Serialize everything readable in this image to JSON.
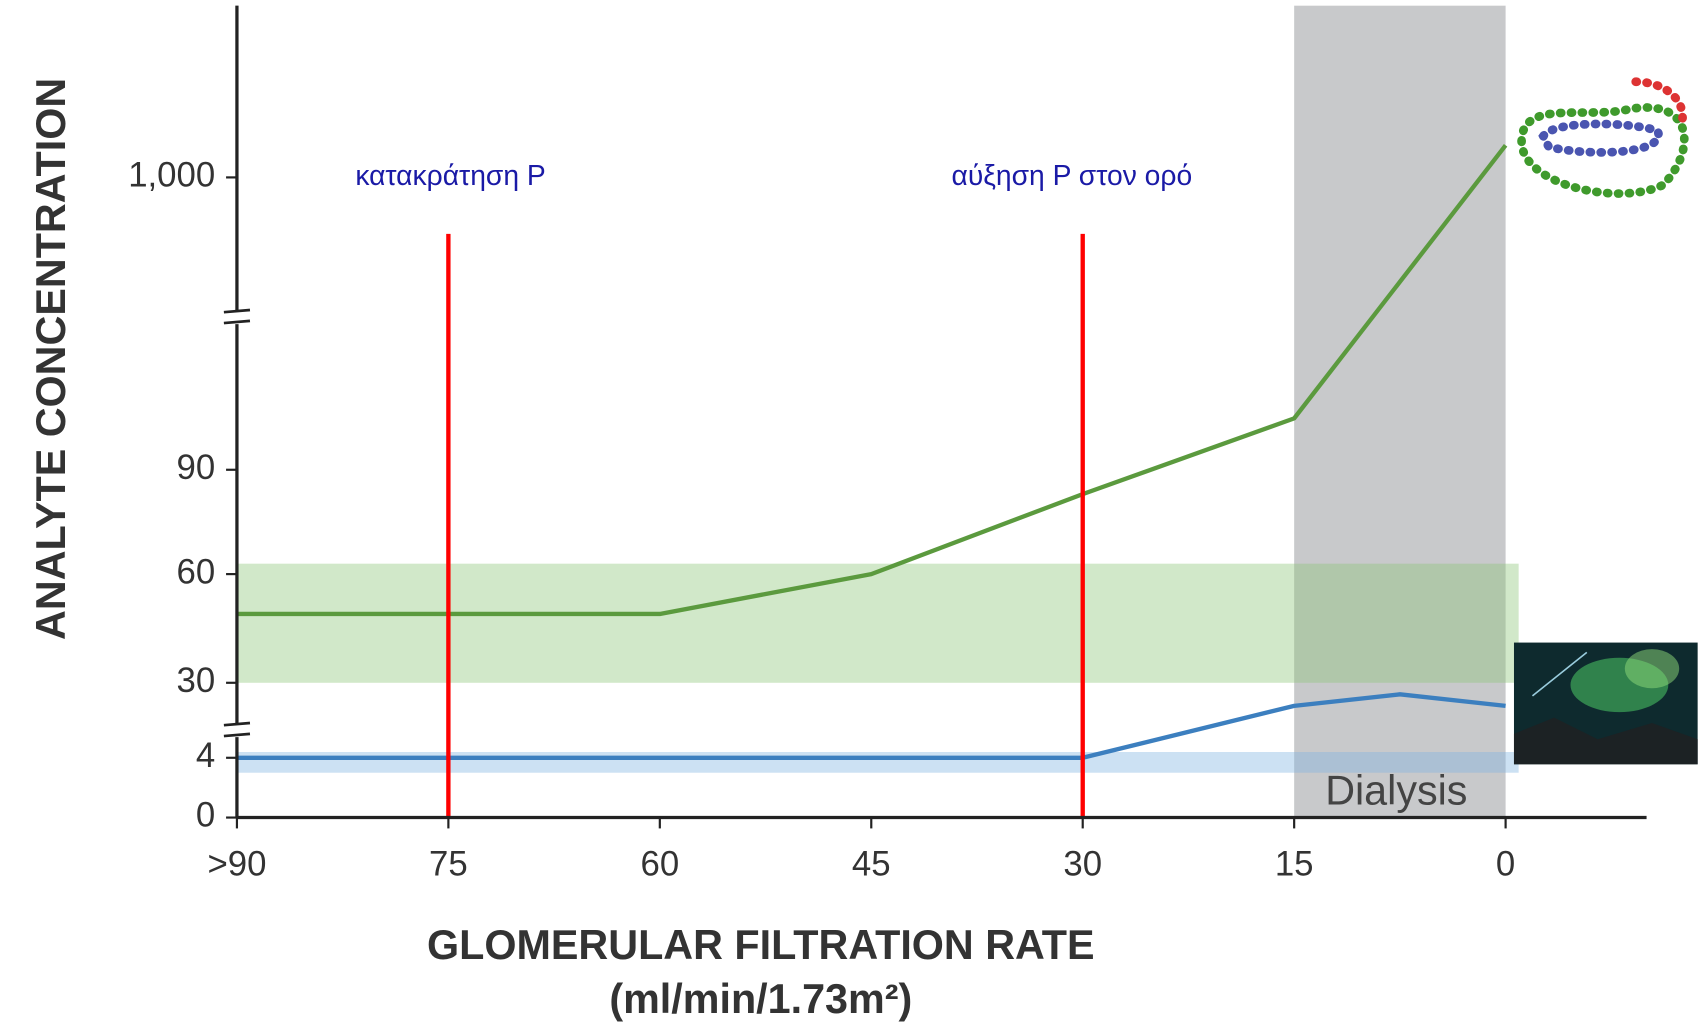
{
  "chart_data": {
    "type": "line",
    "x_label": "GLOMERULAR FILTRATION RATE",
    "x_label_unit": "(ml/min/1.73m²)",
    "y_label": "ANALYTE CONCENTRATION",
    "xlim": [
      90,
      -10
    ],
    "xticks": [
      {
        "value": 90,
        "label": ">90"
      },
      75,
      60,
      45,
      30,
      15,
      0
    ],
    "ylim": [
      0,
      1100
    ],
    "yticks": [
      0,
      4,
      30,
      60,
      90,
      {
        "value": 1000,
        "label": "1,000"
      }
    ],
    "series": [
      {
        "color": "#5b9a3e",
        "x": [
          90,
          60,
          45,
          30,
          15,
          0
        ],
        "values": [
          49,
          49,
          60,
          83,
          250,
          1100
        ]
      },
      {
        "color": "#3c7fbf",
        "x": [
          90,
          30,
          15,
          7.5,
          0
        ],
        "values": [
          4,
          4,
          22,
          26,
          22
        ]
      }
    ],
    "bands": [
      {
        "color": "#8cc578",
        "x": [
          90,
          0
        ],
        "ylim": [
          30,
          63
        ]
      },
      {
        "color": "#7fb4e0",
        "x": [
          90,
          0
        ],
        "ylim": [
          3,
          6
        ]
      }
    ],
    "shaded_region": {
      "color": "#c8c9cb",
      "x": [
        15,
        0
      ],
      "label": "Dialysis"
    },
    "vlines": [
      {
        "x": 75,
        "color": "#ff0000",
        "label": "κατακράτηση P"
      },
      {
        "x": 30,
        "color": "#ff0000",
        "label": "αύξηση P στον ορό"
      }
    ]
  }
}
